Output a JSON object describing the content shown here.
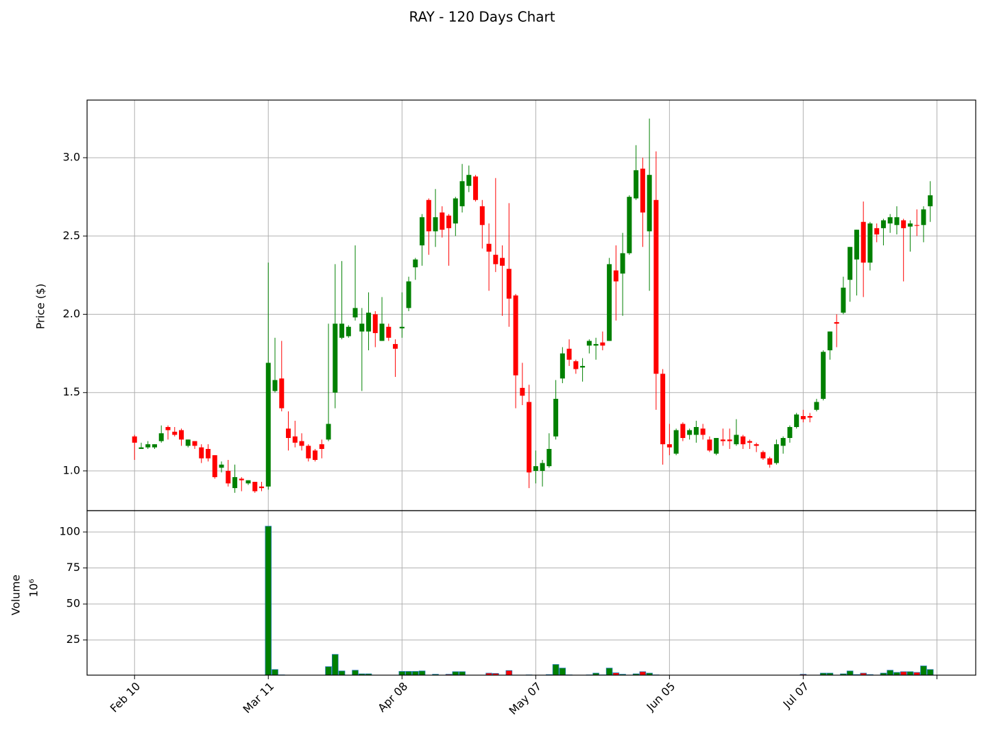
{
  "chart_data": {
    "type": "candlestick",
    "title": "RAY - 120 Days Chart",
    "ylabel": "Price ($)",
    "volume_label": "Volume",
    "volume_unit": "10⁶",
    "up_color": "#008000",
    "down_color": "#ff0000",
    "volume_edge_color": "#1f77b4",
    "grid": true,
    "xlim": [
      -7.1,
      125.8
    ],
    "xticks": [
      {
        "value": 0,
        "label": "Feb 10"
      },
      {
        "value": 20,
        "label": "Mar 11"
      },
      {
        "value": 40,
        "label": "Apr 08"
      },
      {
        "value": 60,
        "label": "May 07"
      },
      {
        "value": 80,
        "label": "Jun 05"
      },
      {
        "value": 100,
        "label": "Jul 07"
      },
      {
        "value": 120,
        "label": null
      }
    ],
    "ylim": [
      0.746,
      3.368
    ],
    "yticks": [
      {
        "value": 1,
        "label": "1.0"
      },
      {
        "value": 1.5,
        "label": "1.5"
      },
      {
        "value": 2,
        "label": "2.0"
      },
      {
        "value": 2.5,
        "label": "2.5"
      },
      {
        "value": 3,
        "label": "3.0"
      }
    ],
    "volume_ylim": [
      0.6,
      114.8
    ],
    "volume_yticks": [
      25,
      50,
      75,
      100
    ],
    "open": [
      1.22,
      1.14,
      1.15,
      1.15,
      1.19,
      1.28,
      1.25,
      1.26,
      1.16,
      1.19,
      1.15,
      1.14,
      1.1,
      1.02,
      1.0,
      0.89,
      0.95,
      0.92,
      0.93,
      0.9,
      0.9,
      1.51,
      1.59,
      1.27,
      1.22,
      1.19,
      1.16,
      1.13,
      1.17,
      1.2,
      1.5,
      1.85,
      1.86,
      1.98,
      1.89,
      1.89,
      2.0,
      1.83,
      1.92,
      1.81,
      1.91,
      2.04,
      2.3,
      2.44,
      2.73,
      2.53,
      2.65,
      2.63,
      2.58,
      2.69,
      2.82,
      2.88,
      2.69,
      2.45,
      2.38,
      2.36,
      2.29,
      2.12,
      1.53,
      1.44,
      1.0,
      1.0,
      1.03,
      1.22,
      1.59,
      1.78,
      1.7,
      1.66,
      1.8,
      1.8,
      1.82,
      1.83,
      2.28,
      2.26,
      2.39,
      2.74,
      2.93,
      2.53,
      2.73,
      1.62,
      1.17,
      1.11,
      1.3,
      1.23,
      1.23,
      1.27,
      1.2,
      1.11,
      1.2,
      1.2,
      1.17,
      1.22,
      1.19,
      1.17,
      1.12,
      1.08,
      1.05,
      1.16,
      1.21,
      1.28,
      1.35,
      1.35,
      1.39,
      1.46,
      1.77,
      1.95,
      2.01,
      2.22,
      2.35,
      2.59,
      2.33,
      2.55,
      2.55,
      2.58,
      2.57,
      2.6,
      2.56,
      2.57,
      2.57,
      2.69
    ],
    "high": [
      1.23,
      1.18,
      1.19,
      1.17,
      1.29,
      1.29,
      1.28,
      1.27,
      1.2,
      1.19,
      1.17,
      1.17,
      1.1,
      1.06,
      1.07,
      1.04,
      0.96,
      0.94,
      0.93,
      0.93,
      2.33,
      1.85,
      1.83,
      1.38,
      1.32,
      1.24,
      1.17,
      1.14,
      1.2,
      1.94,
      2.32,
      2.34,
      1.93,
      2.44,
      2.04,
      2.14,
      2.02,
      2.11,
      1.94,
      1.84,
      2.14,
      2.24,
      2.36,
      2.64,
      2.74,
      2.8,
      2.69,
      2.64,
      2.75,
      2.96,
      2.95,
      2.89,
      2.73,
      2.58,
      2.87,
      2.44,
      2.71,
      2.13,
      1.69,
      1.55,
      1.13,
      1.07,
      1.24,
      1.58,
      1.79,
      1.84,
      1.71,
      1.72,
      1.84,
      1.85,
      1.89,
      2.36,
      2.44,
      2.52,
      2.76,
      3.08,
      3.0,
      3.25,
      3.04,
      1.65,
      1.3,
      1.27,
      1.31,
      1.27,
      1.32,
      1.3,
      1.22,
      1.21,
      1.27,
      1.27,
      1.33,
      1.23,
      1.2,
      1.18,
      1.13,
      1.09,
      1.2,
      1.22,
      1.29,
      1.37,
      1.39,
      1.37,
      1.46,
      1.77,
      1.89,
      2.0,
      2.24,
      2.43,
      2.54,
      2.72,
      2.59,
      2.58,
      2.61,
      2.64,
      2.69,
      2.61,
      2.6,
      2.67,
      2.69,
      2.85
    ],
    "low": [
      1.07,
      1.14,
      1.14,
      1.14,
      1.18,
      1.2,
      1.22,
      1.16,
      1.15,
      1.14,
      1.05,
      1.06,
      0.95,
      0.99,
      0.9,
      0.86,
      0.87,
      0.91,
      0.86,
      0.87,
      0.88,
      1.5,
      1.38,
      1.13,
      1.15,
      1.13,
      1.06,
      1.06,
      1.08,
      1.19,
      1.4,
      1.84,
      1.85,
      1.96,
      1.51,
      1.77,
      1.79,
      1.83,
      1.83,
      1.6,
      1.85,
      2.02,
      2.22,
      2.31,
      2.38,
      2.43,
      2.49,
      2.31,
      2.5,
      2.65,
      2.78,
      2.72,
      2.42,
      2.15,
      2.27,
      1.99,
      1.92,
      1.4,
      1.42,
      0.89,
      0.92,
      0.9,
      1.02,
      1.2,
      1.56,
      1.67,
      1.62,
      1.57,
      1.75,
      1.71,
      1.77,
      1.83,
      1.96,
      1.99,
      2.38,
      2.73,
      2.43,
      2.15,
      1.39,
      1.04,
      1.1,
      1.1,
      1.19,
      1.2,
      1.18,
      1.2,
      1.12,
      1.1,
      1.16,
      1.14,
      1.16,
      1.14,
      1.14,
      1.12,
      1.07,
      1.02,
      1.04,
      1.11,
      1.18,
      1.27,
      1.31,
      1.31,
      1.38,
      1.45,
      1.71,
      1.79,
      2.0,
      2.08,
      2.12,
      2.11,
      2.28,
      2.46,
      2.44,
      2.52,
      2.51,
      2.21,
      2.4,
      2.5,
      2.46,
      2.59
    ],
    "close": [
      1.18,
      1.15,
      1.17,
      1.17,
      1.24,
      1.26,
      1.23,
      1.2,
      1.2,
      1.16,
      1.08,
      1.08,
      0.96,
      1.04,
      0.92,
      0.96,
      0.94,
      0.94,
      0.87,
      0.89,
      1.69,
      1.58,
      1.4,
      1.21,
      1.18,
      1.16,
      1.08,
      1.07,
      1.14,
      1.3,
      1.94,
      1.94,
      1.92,
      2.04,
      1.94,
      2.01,
      1.88,
      1.94,
      1.85,
      1.78,
      1.92,
      2.21,
      2.35,
      2.62,
      2.53,
      2.62,
      2.54,
      2.55,
      2.74,
      2.85,
      2.89,
      2.73,
      2.57,
      2.4,
      2.32,
      2.31,
      2.1,
      1.61,
      1.48,
      0.99,
      1.03,
      1.05,
      1.14,
      1.46,
      1.75,
      1.71,
      1.65,
      1.67,
      1.83,
      1.81,
      1.8,
      2.32,
      2.21,
      2.39,
      2.75,
      2.92,
      2.65,
      2.89,
      1.62,
      1.17,
      1.15,
      1.26,
      1.21,
      1.26,
      1.28,
      1.23,
      1.13,
      1.21,
      1.19,
      1.19,
      1.23,
      1.17,
      1.18,
      1.16,
      1.08,
      1.04,
      1.17,
      1.21,
      1.28,
      1.36,
      1.33,
      1.34,
      1.44,
      1.76,
      1.89,
      1.94,
      2.17,
      2.43,
      2.54,
      2.33,
      2.58,
      2.51,
      2.6,
      2.62,
      2.62,
      2.55,
      2.58,
      2.565,
      2.67,
      2.76
    ],
    "volume": [
      0.2,
      0.2,
      0.2,
      0.2,
      0.2,
      0.2,
      0.2,
      0.2,
      0.2,
      0.2,
      0.2,
      0.2,
      0.2,
      0.2,
      0.2,
      0.2,
      0.2,
      0.2,
      0.2,
      0.2,
      104,
      4.5,
      0.8,
      0.3,
      0.3,
      0.3,
      0.3,
      0.3,
      0.3,
      6.5,
      15,
      3.5,
      0.3,
      4,
      1.5,
      1.5,
      0.3,
      0.3,
      0.3,
      0.3,
      3.2,
      3.2,
      3.2,
      3.5,
      0.3,
      1.2,
      0.3,
      1.2,
      3,
      3,
      0.3,
      0.3,
      0.3,
      2,
      1.8,
      0.3,
      3.8,
      0.3,
      0.3,
      0.8,
      0.3,
      0.3,
      1,
      8,
      5.5,
      0.8,
      0.3,
      0.3,
      0.8,
      2,
      0.8,
      5.5,
      2.2,
      1.2,
      0.3,
      1.5,
      3,
      2,
      0.8,
      0.3,
      0.3,
      0.3,
      0.3,
      0.3,
      0.3,
      0.3,
      0.3,
      0.3,
      0.3,
      0.3,
      0.3,
      0.3,
      0.3,
      0.3,
      0.3,
      0.3,
      0.3,
      0.3,
      0.3,
      0.3,
      1.2,
      0.5,
      0.3,
      2,
      2,
      0.3,
      1.5,
      3.5,
      1,
      2,
      1,
      0.3,
      2,
      4,
      2.5,
      3,
      3,
      2.5,
      7,
      4.5
    ]
  }
}
